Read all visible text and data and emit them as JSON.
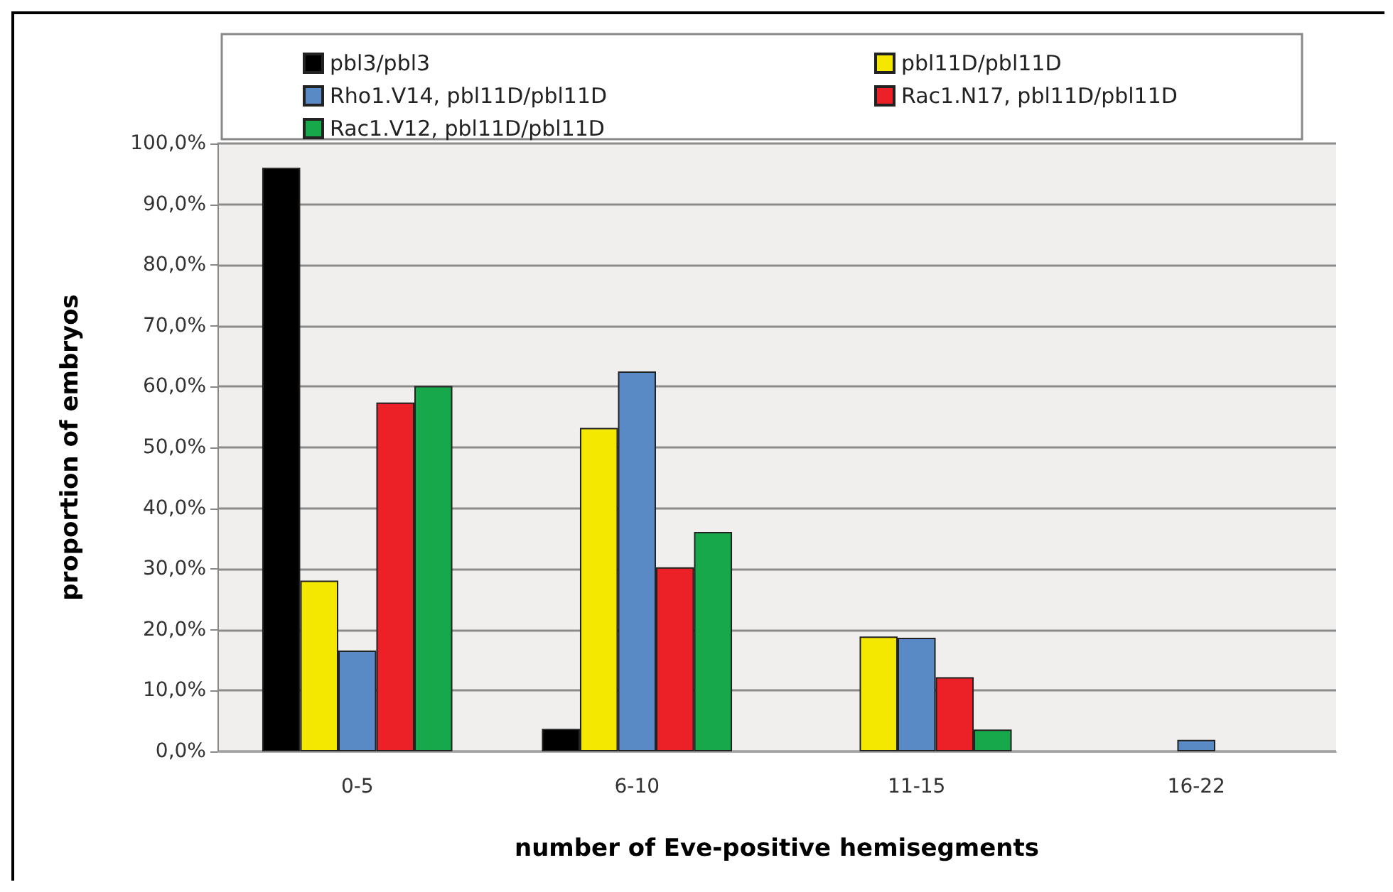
{
  "chart_data": {
    "type": "bar",
    "xlabel": "number of Eve-positive hemisegments",
    "ylabel": "proportion of embryos",
    "categories": [
      "0-5",
      "6-10",
      "11-15",
      "16-22"
    ],
    "series": [
      {
        "name": "pbl3/pbl3",
        "color": "#000000",
        "values": [
          96.0,
          3.7,
          0,
          0
        ]
      },
      {
        "name": "pbl11D/pbl11D",
        "color": "#f5e800",
        "values": [
          28.1,
          53.2,
          18.9,
          0
        ]
      },
      {
        "name": "Rho1.V14, pbl11D/pbl11D",
        "color": "#5a8ac6",
        "values": [
          16.6,
          62.5,
          18.7,
          1.9
        ]
      },
      {
        "name": "Rac1.N17, pbl11D/pbl11D",
        "color": "#ec2027",
        "values": [
          57.4,
          30.3,
          12.2,
          0
        ]
      },
      {
        "name": "Rac1.V12, pbl11D/pbl11D",
        "color": "#16a84b",
        "values": [
          60.1,
          36.1,
          3.6,
          0
        ]
      }
    ],
    "ylim": [
      0,
      100
    ],
    "yticks": [
      {
        "value": 0,
        "label": "0,0%"
      },
      {
        "value": 10,
        "label": "10,0%"
      },
      {
        "value": 20,
        "label": "20,0%"
      },
      {
        "value": 30,
        "label": "30,0%"
      },
      {
        "value": 40,
        "label": "40,0%"
      },
      {
        "value": 50,
        "label": "50,0%"
      },
      {
        "value": 60,
        "label": "60,0%"
      },
      {
        "value": 70,
        "label": "70,0%"
      },
      {
        "value": 80,
        "label": "80,0%"
      },
      {
        "value": 90,
        "label": "90,0%"
      },
      {
        "value": 100,
        "label": "100,0%"
      }
    ],
    "grid": "y",
    "legend": "top"
  }
}
